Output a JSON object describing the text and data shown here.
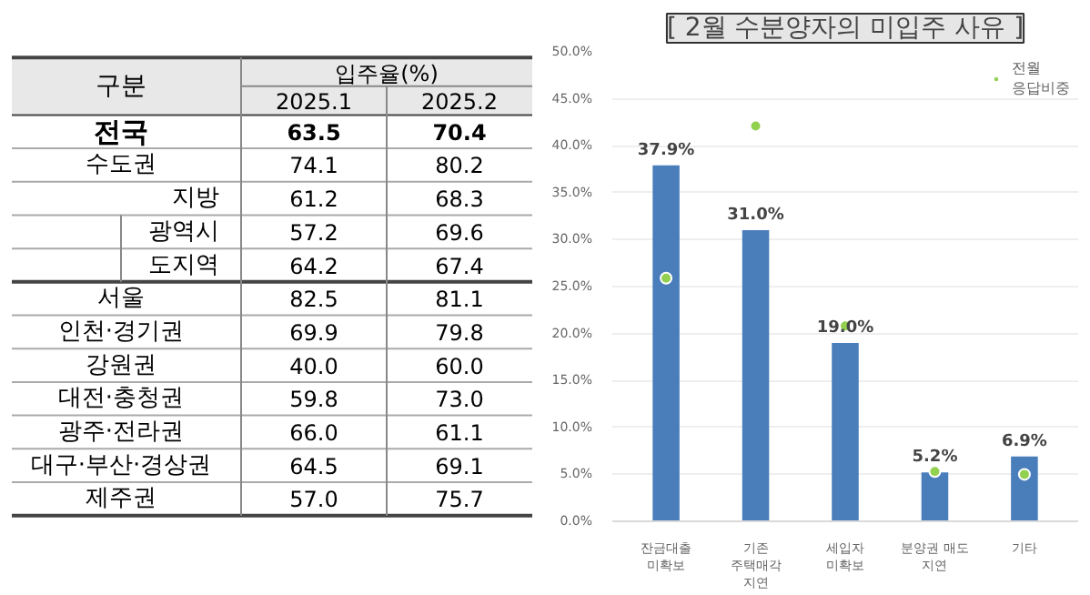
{
  "chart_data": [
    {
      "type": "other",
      "data_labels": true,
      "title": "입주율(%)",
      "ylabel": "구분",
      "categories": [
        "전국",
        "수도권",
        "지방",
        "광역시",
        "도지역",
        "서울",
        "인천·경기권",
        "강원권",
        "대전·충청권",
        "광주·전라권",
        "대구·부산·경상권",
        "제주권"
      ],
      "series": [
        {
          "name": "2025.1",
          "values": [
            63.5,
            74.1,
            61.2,
            57.2,
            64.2,
            82.5,
            69.9,
            40.0,
            59.8,
            66.0,
            64.5,
            57.0
          ],
          "value_labels": [
            "63.5",
            "74.1",
            "61.2",
            "57.2",
            "64.2",
            "82.5",
            "69.9",
            "40.0",
            "59.8",
            "66.0",
            "64.5",
            "57.0"
          ]
        },
        {
          "name": "2025.2",
          "values": [
            70.4,
            80.2,
            68.3,
            69.6,
            67.4,
            81.1,
            79.8,
            60.0,
            73.0,
            61.1,
            69.1,
            75.7
          ],
          "value_labels": [
            "70.4",
            "80.2",
            "68.3",
            "69.6",
            "67.4",
            "81.1",
            "79.8",
            "60.0",
            "73.0",
            "61.1",
            "69.1",
            "75.7"
          ]
        }
      ]
    },
    {
      "type": "bar",
      "title": "[ 2월 수분양자의 미입주 사유 ]",
      "categories": [
        "잔금대출\n미확보",
        "기존\n주택매각\n지연",
        "세입자\n미확보",
        "분양권 매도\n지연",
        "기타"
      ],
      "series": [
        {
          "type": "bar",
          "color": "#4a7ebb",
          "values": [
            37.9,
            31.0,
            19.0,
            5.2,
            6.9
          ],
          "value_labels": [
            "37.9%",
            "31.0%",
            "19.0%",
            "5.2%",
            "6.9%"
          ]
        },
        {
          "type": "scatter",
          "name": "전월\n응답비중",
          "color": "#92d050",
          "values": [
            25.9,
            42.1,
            20.8,
            5.3,
            5.0
          ]
        }
      ],
      "ylim": [
        0,
        50
      ],
      "yticks": [
        {
          "value": 0,
          "label": "0.0%"
        },
        {
          "value": 5,
          "label": "5.0%"
        },
        {
          "value": 10,
          "label": "10.0%"
        },
        {
          "value": 15,
          "label": "15.0%"
        },
        {
          "value": 20,
          "label": "20.0%"
        },
        {
          "value": 25,
          "label": "25.0%"
        },
        {
          "value": 30,
          "label": "30.0%"
        },
        {
          "value": 35,
          "label": "35.0%"
        },
        {
          "value": 40,
          "label": "40.0%"
        },
        {
          "value": 45,
          "label": "45.0%"
        },
        {
          "value": 50,
          "label": "50.0%"
        }
      ],
      "grid": "y",
      "legend": "top right",
      "marker": "circle"
    }
  ]
}
